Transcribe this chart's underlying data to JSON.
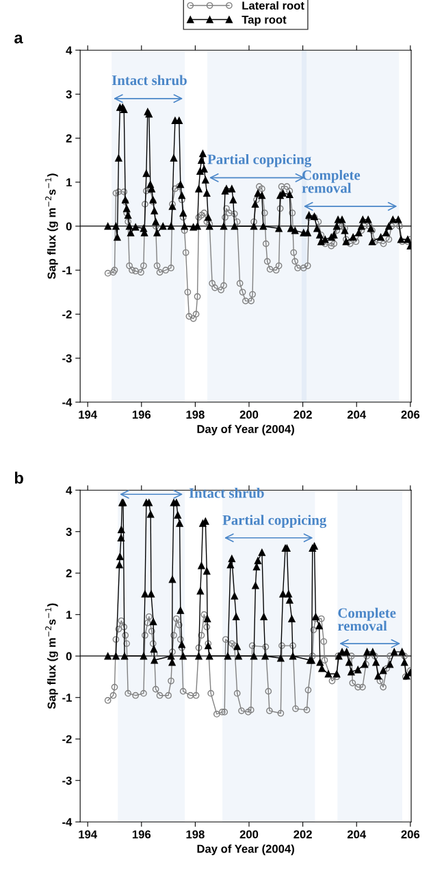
{
  "chart_data": [
    {
      "type": "line",
      "title": "a",
      "xlabel": "Day of Year (2004)",
      "ylabel": "Sap flux (g m$^{−2}$s$^{−1}$)",
      "xlim": [
        193.72,
        206.03
      ],
      "xticks": [
        194,
        196,
        198,
        200,
        202,
        204,
        206
      ],
      "ylim": [
        -4,
        4
      ],
      "yticks": [
        -4,
        -3,
        -2,
        -1,
        0,
        1,
        2,
        3,
        4
      ],
      "grid": false,
      "legend": "top",
      "ref_lines": [
        {
          "axis": "y",
          "value": 0,
          "color": "#000000",
          "line_style": "solid"
        }
      ],
      "bands": [
        {
          "axis": "x",
          "from": 194.89,
          "to": 197.61,
          "label": "Intact shrub",
          "color": "#4a86c8"
        },
        {
          "axis": "x",
          "from": 198.45,
          "to": 202.14,
          "label": "Partial coppicing",
          "color": "#4a86c8"
        },
        {
          "axis": "x",
          "from": 201.96,
          "to": 205.58,
          "label": "Complete\nremoval",
          "color": "#4a86c8"
        }
      ],
      "series": [
        {
          "name": "Lateral root",
          "color": "#808080",
          "marker": "circle",
          "x": [
            194.75,
            194.95,
            195.0,
            195.05,
            195.15,
            195.35,
            195.4,
            195.45,
            195.5,
            195.55,
            195.65,
            195.78,
            195.98,
            196.08,
            196.13,
            196.18,
            196.33,
            196.43,
            196.53,
            196.58,
            196.68,
            196.9,
            197.1,
            197.15,
            197.25,
            197.4,
            197.5,
            197.55,
            197.6,
            197.65,
            197.72,
            197.77,
            197.93,
            198.03,
            198.08,
            198.13,
            198.23,
            198.33,
            198.43,
            198.53,
            198.63,
            198.73,
            198.96,
            199.06,
            199.11,
            199.16,
            199.26,
            199.46,
            199.56,
            199.66,
            199.76,
            199.87,
            200.08,
            200.13,
            200.18,
            200.28,
            200.38,
            200.48,
            200.58,
            200.63,
            200.68,
            200.78,
            201.01,
            201.11,
            201.16,
            201.21,
            201.41,
            201.51,
            201.61,
            201.66,
            201.71,
            201.81,
            202.03,
            202.18,
            202.23,
            202.43,
            202.58,
            202.68,
            202.73,
            202.83,
            203.06,
            203.16,
            203.26,
            203.36,
            203.46,
            203.56,
            203.61,
            203.76,
            203.98,
            204.18,
            204.28,
            204.48,
            204.58,
            204.68,
            205.0,
            205.2,
            205.3,
            205.6,
            205.7,
            205.9,
            206.0
          ],
          "values": [
            -1.07,
            -1.05,
            -1.0,
            0.75,
            0.78,
            0.78,
            0.55,
            0.3,
            0.1,
            -0.9,
            -1.0,
            -1.02,
            -1.05,
            -0.9,
            0.5,
            0.8,
            0.82,
            0.55,
            0.0,
            -0.9,
            -1.05,
            -1.0,
            -0.95,
            0.5,
            0.85,
            0.9,
            0.6,
            0.2,
            -0.1,
            -0.6,
            -1.5,
            -2.05,
            -2.1,
            -2.0,
            -1.6,
            0.2,
            0.25,
            0.3,
            0.1,
            0.05,
            -1.3,
            -1.4,
            -1.45,
            -1.35,
            0.2,
            0.4,
            0.3,
            0.28,
            0.1,
            -1.3,
            -1.5,
            -1.7,
            -1.7,
            -1.55,
            0.1,
            0.6,
            0.9,
            0.85,
            0.3,
            -0.4,
            -0.8,
            -0.98,
            -1.0,
            -0.9,
            0.4,
            0.9,
            0.9,
            0.8,
            0.3,
            -0.6,
            -0.8,
            -0.95,
            -0.95,
            -0.9,
            0.2,
            0.2,
            0.1,
            -0.2,
            -0.35,
            -0.4,
            -0.45,
            -0.4,
            -0.1,
            0.0,
            0.0,
            -0.05,
            -0.3,
            -0.4,
            -0.35,
            -0.1,
            0.0,
            0.0,
            -0.1,
            -0.35,
            -0.4,
            -0.3,
            0.0,
            0.0,
            -0.35,
            -0.35,
            -0.3
          ]
        },
        {
          "name": "Tap root",
          "color": "#000000",
          "marker": "triangle",
          "x": [
            194.75,
            195.05,
            195.1,
            195.15,
            195.2,
            195.3,
            195.35,
            195.4,
            195.45,
            195.5,
            195.55,
            195.6,
            195.78,
            196.08,
            196.11,
            196.18,
            196.23,
            196.28,
            196.33,
            196.38,
            196.43,
            196.48,
            196.53,
            196.58,
            196.8,
            197.1,
            197.15,
            197.2,
            197.25,
            197.4,
            197.45,
            197.5,
            197.55,
            197.6,
            197.93,
            198.08,
            198.13,
            198.18,
            198.23,
            198.28,
            198.33,
            198.38,
            198.43,
            198.48,
            198.53,
            199.06,
            199.11,
            199.16,
            199.36,
            199.41,
            199.46,
            200.18,
            200.23,
            200.33,
            200.48,
            200.53,
            201.11,
            201.16,
            201.26,
            201.51,
            201.56,
            201.71,
            202.03,
            202.18,
            202.23,
            202.43,
            202.53,
            202.63,
            202.68,
            202.83,
            203.06,
            203.16,
            203.26,
            203.31,
            203.46,
            203.56,
            203.61,
            203.87,
            204.08,
            204.18,
            204.23,
            204.43,
            204.53,
            204.58,
            204.9,
            205.1,
            205.2,
            205.35,
            205.55,
            205.65,
            205.9,
            206.0
          ],
          "values": [
            0,
            0,
            -0.25,
            1.55,
            2.7,
            2.7,
            2.65,
            0.6,
            0.4,
            0.25,
            0.0,
            -0.15,
            -0.02,
            -0.05,
            -0.15,
            1.2,
            2.6,
            2.55,
            0.95,
            0.85,
            0.6,
            0.35,
            0.1,
            -0.15,
            0.0,
            0.0,
            0.45,
            1.55,
            2.4,
            2.4,
            0.95,
            0.7,
            0.3,
            0.0,
            -0.02,
            0.0,
            0.85,
            1.25,
            1.5,
            1.65,
            1.3,
            1.05,
            0.75,
            0.2,
            0.0,
            0.0,
            0.8,
            0.85,
            0.85,
            0.6,
            0.0,
            0.0,
            0.5,
            0.75,
            0.7,
            0.0,
            -0.05,
            0.7,
            0.75,
            0.72,
            -0.05,
            -0.1,
            -0.15,
            -0.15,
            0.25,
            0.22,
            -0.05,
            -0.2,
            -0.35,
            -0.3,
            -0.25,
            -0.2,
            0.0,
            0.15,
            0.15,
            -0.1,
            -0.35,
            -0.25,
            -0.15,
            0.0,
            0.15,
            0.15,
            -0.05,
            -0.35,
            -0.25,
            -0.15,
            0.0,
            0.15,
            0.15,
            -0.3,
            -0.3,
            -0.45
          ]
        }
      ]
    },
    {
      "type": "line",
      "title": "b",
      "xlabel": "Day of Year (2004)",
      "ylabel": "Sap flux (g m$^{−2}$s$^{−1}$)",
      "xlim": [
        193.72,
        206.03
      ],
      "xticks": [
        194,
        196,
        198,
        200,
        202,
        204,
        206
      ],
      "ylim": [
        -4,
        4
      ],
      "yticks": [
        -4,
        -3,
        -2,
        -1,
        0,
        1,
        2,
        3,
        4
      ],
      "grid": false,
      "ref_lines": [
        {
          "axis": "y",
          "value": 0,
          "color": "#000000",
          "line_style": "solid"
        }
      ],
      "bands": [
        {
          "axis": "x",
          "from": 195.12,
          "to": 197.61,
          "label": "Intact shrub",
          "color": "#4a86c8"
        },
        {
          "axis": "x",
          "from": 199.01,
          "to": 202.45,
          "label": "Partial coppicing",
          "color": "#4a86c8"
        },
        {
          "axis": "x",
          "from": 203.29,
          "to": 205.7,
          "label": "Complete\nremoval",
          "color": "#4a86c8"
        }
      ],
      "series": [
        {
          "color": "#808080",
          "marker": "circle",
          "x": [
            194.75,
            194.95,
            195.0,
            195.05,
            195.15,
            195.25,
            195.35,
            195.4,
            195.45,
            195.5,
            195.78,
            196.08,
            196.13,
            196.23,
            196.28,
            196.38,
            196.43,
            196.48,
            196.53,
            196.68,
            197.0,
            197.1,
            197.15,
            197.2,
            197.3,
            197.4,
            197.45,
            197.5,
            197.55,
            197.82,
            198.03,
            198.13,
            198.23,
            198.33,
            198.43,
            198.48,
            198.58,
            198.8,
            199.0,
            199.09,
            199.13,
            199.36,
            199.46,
            199.56,
            199.72,
            199.97,
            200.07,
            200.12,
            200.62,
            200.72,
            200.76,
            201.18,
            201.22,
            201.63,
            201.73,
            202.15,
            202.2,
            202.36,
            202.4,
            202.48,
            202.69,
            202.78,
            202.81,
            203.09,
            203.26,
            203.31,
            203.81,
            203.85,
            204.05,
            204.22,
            204.35,
            204.38,
            204.68,
            204.87,
            204.99,
            205.12,
            205.24,
            205.78,
            205.82,
            206.0
          ],
          "values": [
            -1.07,
            -0.95,
            -0.75,
            0.4,
            0.65,
            0.85,
            0.7,
            0.5,
            0.3,
            -0.9,
            -0.95,
            -0.9,
            0.5,
            0.8,
            0.95,
            0.6,
            0.3,
            0.05,
            -0.8,
            -0.95,
            -0.95,
            -0.6,
            0.1,
            0.5,
            0.9,
            0.75,
            0.4,
            0.2,
            -0.85,
            -0.95,
            -0.95,
            0.2,
            0.5,
            1.0,
            0.7,
            0.3,
            -0.9,
            -1.4,
            -1.35,
            -1.35,
            0.4,
            0.3,
            0.25,
            -0.9,
            -1.32,
            -1.35,
            -1.3,
            0.25,
            0.22,
            -0.85,
            -1.32,
            -1.38,
            0.25,
            0.25,
            -1.27,
            -1.3,
            -0.82,
            0.0,
            0.63,
            0.9,
            0.9,
            0.35,
            -0.1,
            -0.6,
            -0.5,
            0.0,
            0.0,
            -0.65,
            -0.75,
            -0.75,
            -0.2,
            0.0,
            0.0,
            -0.6,
            -0.75,
            -0.3,
            0.0,
            0.0,
            -0.5,
            -0.35
          ]
        },
        {
          "color": "#000000",
          "marker": "triangle",
          "x": [
            194.75,
            195.05,
            195.18,
            195.2,
            195.24,
            195.25,
            195.28,
            195.32,
            195.37,
            196.08,
            196.13,
            196.18,
            196.28,
            196.34,
            196.36,
            196.44,
            196.46,
            196.48,
            197.1,
            197.14,
            197.15,
            197.2,
            197.3,
            197.35,
            197.42,
            197.45,
            197.5,
            197.55,
            198.13,
            198.19,
            198.23,
            198.28,
            198.38,
            198.43,
            198.45,
            198.48,
            198.53,
            199.21,
            199.31,
            199.36,
            199.46,
            199.52,
            199.56,
            199.61,
            200.18,
            200.24,
            200.28,
            200.33,
            200.48,
            200.55,
            200.6,
            201.18,
            201.26,
            201.35,
            201.41,
            201.47,
            201.51,
            201.59,
            201.63,
            202.27,
            202.33,
            202.36,
            202.43,
            202.48,
            202.61,
            202.64,
            202.71,
            202.95,
            203.26,
            203.34,
            203.46,
            203.63,
            203.72,
            203.8,
            204.05,
            204.3,
            204.39,
            204.6,
            204.72,
            204.8,
            204.99,
            205.24,
            205.4,
            205.69,
            205.78,
            205.86,
            206.0
          ],
          "values": [
            0,
            0,
            2.2,
            2.4,
            2.85,
            3.05,
            3.7,
            3.7,
            0.0,
            0.0,
            1.5,
            3.7,
            3.7,
            3.42,
            1.5,
            0.83,
            0.17,
            -0.1,
            0.0,
            -0.15,
            1.85,
            3.7,
            3.7,
            3.4,
            3.2,
            1.1,
            0.28,
            0.0,
            0.0,
            1.57,
            2.18,
            3.2,
            3.25,
            2.05,
            0.9,
            0.25,
            0.0,
            0.0,
            2.2,
            2.35,
            1.45,
            0.95,
            0.23,
            0.0,
            0.0,
            1.7,
            2.15,
            2.3,
            2.5,
            0.95,
            0.0,
            -0.05,
            1.5,
            2.6,
            2.6,
            1.5,
            1.35,
            0.9,
            0.0,
            -0.1,
            -0.1,
            2.6,
            2.65,
            0.95,
            0.73,
            -0.15,
            -0.3,
            -0.43,
            -0.43,
            0.0,
            0.1,
            0.1,
            -0.15,
            -0.38,
            -0.33,
            -0.2,
            0.1,
            0.1,
            -0.15,
            -0.48,
            -0.35,
            -0.2,
            0.1,
            0.1,
            -0.15,
            -0.48,
            -0.4
          ]
        }
      ]
    }
  ]
}
